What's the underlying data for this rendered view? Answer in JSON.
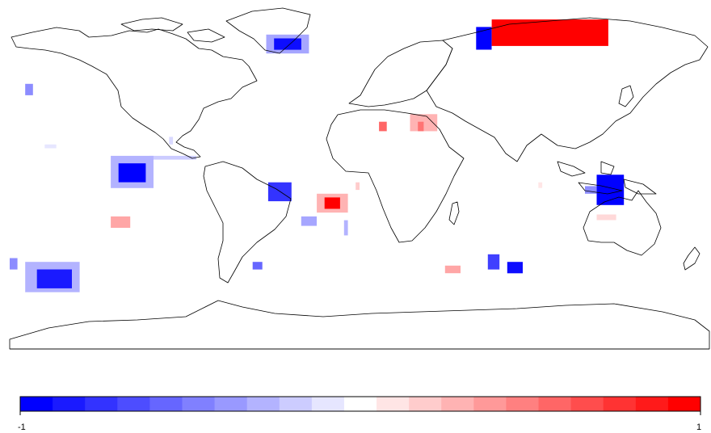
{
  "map": {
    "projection": "equirectangular",
    "extent": {
      "lon": [
        -180,
        180
      ],
      "lat": [
        -90,
        90
      ]
    },
    "land_outline_color": "#000000",
    "ocean_color": "#ffffff",
    "cells": [
      {
        "region": "greenland",
        "value": -0.95,
        "lon": [
          -44,
          -30
        ],
        "lat": [
          68,
          74
        ]
      },
      {
        "region": "greenland-edge",
        "value": -0.35,
        "lon": [
          -48,
          -26
        ],
        "lat": [
          66,
          76
        ]
      },
      {
        "region": "nw-russia",
        "value": -1.0,
        "lon": [
          60,
          68
        ],
        "lat": [
          68,
          80
        ]
      },
      {
        "region": "siberia",
        "value": 1.0,
        "lon": [
          68,
          128
        ],
        "lat": [
          70,
          84
        ]
      },
      {
        "region": "nw-pacific-ak",
        "value": -0.45,
        "lon": [
          -172,
          -168
        ],
        "lat": [
          44,
          50
        ]
      },
      {
        "region": "ne-pacific",
        "value": -1.0,
        "lon": [
          -124,
          -110
        ],
        "lat": [
          -2,
          8
        ]
      },
      {
        "region": "ne-pacific-edge",
        "value": -0.3,
        "lon": [
          -128,
          -106
        ],
        "lat": [
          -5,
          12
        ]
      },
      {
        "region": "central-pacific-band",
        "value": -0.2,
        "lon": [
          -108,
          -84
        ],
        "lat": [
          10,
          12
        ]
      },
      {
        "region": "se-pacific",
        "value": 0.35,
        "lon": [
          -128,
          -118
        ],
        "lat": [
          -26,
          -20
        ]
      },
      {
        "region": "brazil",
        "value": -0.8,
        "lon": [
          -47,
          -35
        ],
        "lat": [
          -12,
          -2
        ]
      },
      {
        "region": "south-atlantic",
        "value": 1.0,
        "lon": [
          -18,
          -10
        ],
        "lat": [
          -16,
          -10
        ]
      },
      {
        "region": "s-atlantic-edge",
        "value": 0.3,
        "lon": [
          -22,
          -6
        ],
        "lat": [
          -18,
          -8
        ]
      },
      {
        "region": "s-atlantic-blue",
        "value": -0.35,
        "lon": [
          -30,
          -22
        ],
        "lat": [
          -25,
          -20
        ]
      },
      {
        "region": "mid-atlantic-strip",
        "value": -0.3,
        "lon": [
          -8,
          -6
        ],
        "lat": [
          -30,
          -22
        ]
      },
      {
        "region": "libya",
        "value": 0.6,
        "lon": [
          10,
          14
        ],
        "lat": [
          25,
          30
        ]
      },
      {
        "region": "egypt-levant",
        "value": 0.3,
        "lon": [
          26,
          40
        ],
        "lat": [
          25,
          34
        ]
      },
      {
        "region": "egypt-core",
        "value": 0.55,
        "lon": [
          30,
          33
        ],
        "lat": [
          25,
          30
        ]
      },
      {
        "region": "australia-north",
        "value": -1.0,
        "lon": [
          122,
          136
        ],
        "lat": [
          -14,
          2
        ]
      },
      {
        "region": "timor-sea",
        "value": -0.45,
        "lon": [
          116,
          122
        ],
        "lat": [
          -8,
          -4
        ]
      },
      {
        "region": "nw-australia",
        "value": 0.15,
        "lon": [
          122,
          132
        ],
        "lat": [
          -22,
          -19
        ]
      },
      {
        "region": "se-pacific-far",
        "value": -0.9,
        "lon": [
          -166,
          -148
        ],
        "lat": [
          -58,
          -48
        ]
      },
      {
        "region": "se-pacific-far-edge",
        "value": -0.3,
        "lon": [
          -172,
          -144
        ],
        "lat": [
          -60,
          -44
        ]
      },
      {
        "region": "s-pacific-west",
        "value": -0.45,
        "lon": [
          -180,
          -176
        ],
        "lat": [
          -48,
          -42
        ]
      },
      {
        "region": "s-atlantic-south",
        "value": -0.6,
        "lon": [
          -55,
          -50
        ],
        "lat": [
          -48,
          -44
        ]
      },
      {
        "region": "s-indian-red",
        "value": 0.35,
        "lon": [
          44,
          52
        ],
        "lat": [
          -50,
          -46
        ]
      },
      {
        "region": "s-indian-blue-1",
        "value": -0.75,
        "lon": [
          66,
          72
        ],
        "lat": [
          -48,
          -40
        ]
      },
      {
        "region": "s-indian-blue-2",
        "value": -0.95,
        "lon": [
          76,
          84
        ],
        "lat": [
          -50,
          -44
        ]
      },
      {
        "region": "caribbean",
        "value": -0.15,
        "lon": [
          -98,
          -96
        ],
        "lat": [
          18,
          22
        ]
      },
      {
        "region": "n-pacific-small",
        "value": -0.1,
        "lon": [
          -162,
          -156
        ],
        "lat": [
          16,
          18
        ]
      },
      {
        "region": "w-africa-small",
        "value": 0.2,
        "lon": [
          -2,
          0
        ],
        "lat": [
          -6,
          -2
        ]
      },
      {
        "region": "indian-small",
        "value": 0.1,
        "lon": [
          92,
          94
        ],
        "lat": [
          -5,
          -2
        ]
      }
    ]
  },
  "colorbar": {
    "min_label": "-1",
    "max_label": "1",
    "min": -1,
    "max": 1,
    "steps": 21,
    "low_color": "#0000ff",
    "mid_color": "#ffffff",
    "high_color": "#ff0000"
  }
}
